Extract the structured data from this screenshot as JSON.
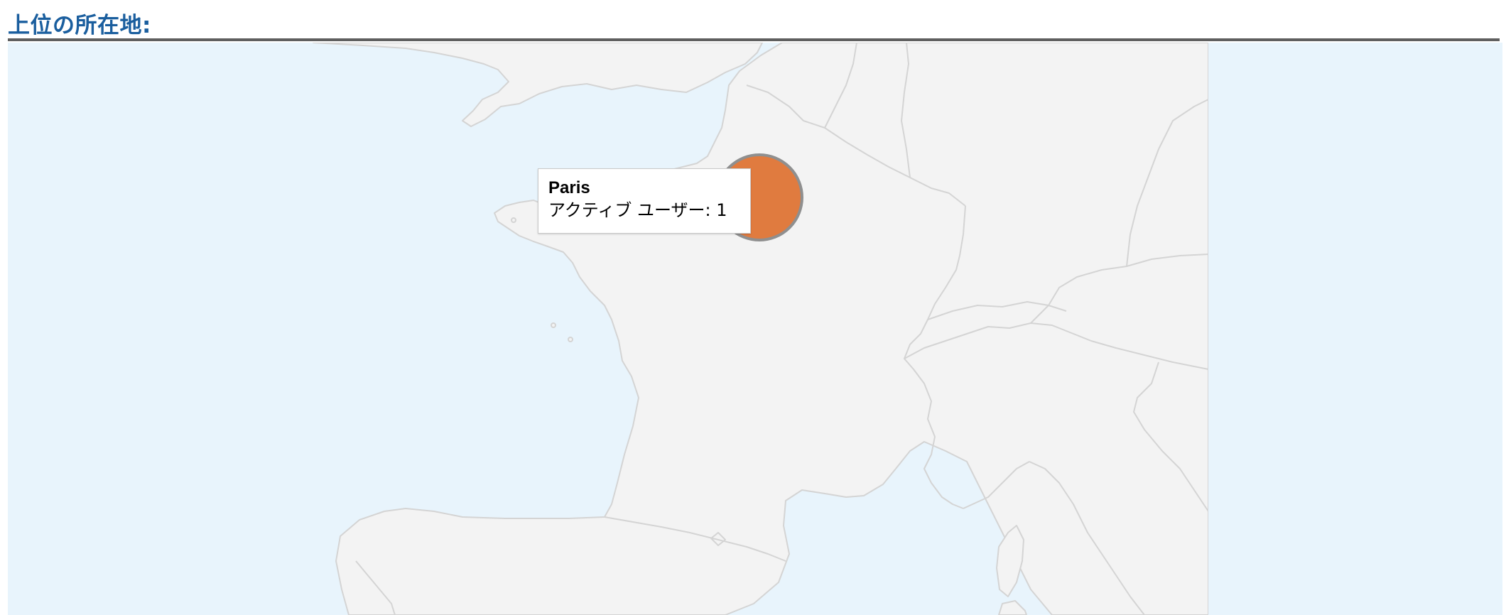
{
  "section": {
    "title": "上位の所在地:"
  },
  "map": {
    "colors": {
      "water": "#e8f4fc",
      "land": "#f3f3f3",
      "border": "#d4d4d4",
      "marker": "#e07b3f",
      "marker_stroke": "#8f8f8f"
    },
    "markers": [
      {
        "city": "Paris",
        "active_users": 1
      }
    ],
    "tooltip": {
      "city": "Paris",
      "metric_text": "アクティブ ユーザー: 1"
    }
  }
}
